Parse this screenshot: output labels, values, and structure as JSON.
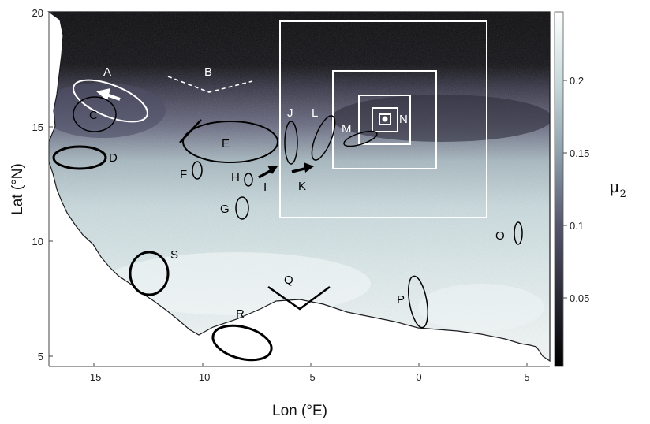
{
  "axes": {
    "xlabel": "Lon (°E)",
    "ylabel": "Lat (°N)",
    "xticks": [
      "-15",
      "-10",
      "-5",
      "0",
      "5"
    ],
    "yticks": [
      "20",
      "15",
      "10",
      "5"
    ]
  },
  "colorbar": {
    "label": "μ",
    "label_sub": "2",
    "ticks": [
      "0.2",
      "0.15",
      "0.1",
      "0.05"
    ]
  },
  "feature_labels": {
    "A": "A",
    "B": "B",
    "C": "C",
    "D": "D",
    "E": "E",
    "F": "F",
    "G": "G",
    "H": "H",
    "I": "I",
    "J": "J",
    "K": "K",
    "L": "L",
    "M": "M",
    "N": "N",
    "O": "O",
    "P": "P",
    "Q": "Q",
    "R": "R",
    "S": "S"
  },
  "colors": {
    "map_dark": "#0e0e10",
    "map_mid": "#5c5c72",
    "map_light": "#e6eff0",
    "annotation_black": "#000000",
    "annotation_white": "#ffffff"
  }
}
